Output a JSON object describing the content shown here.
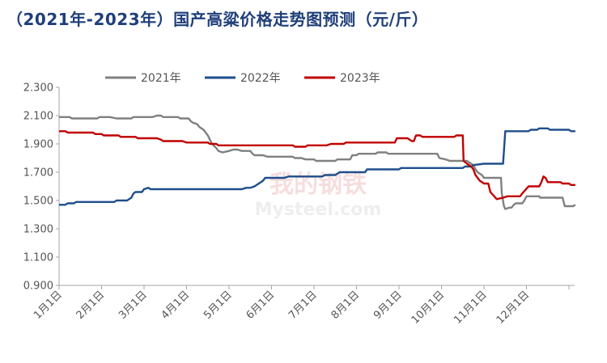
{
  "title": "（2021年-2023年）国产高粱价格走势图预测（元/斤）",
  "watermark": {
    "cn": "我的钢铁",
    "en": "Mysteel.com"
  },
  "chart_data": {
    "type": "line",
    "title": "（2021年-2023年）国产高粱价格走势图预测（元/斤）",
    "xlabel": "",
    "ylabel": "",
    "ylim": [
      0.9,
      2.3
    ],
    "yticks": [
      0.9,
      1.1,
      1.3,
      1.5,
      1.7,
      1.9,
      2.1,
      2.3
    ],
    "ytick_labels": [
      "0.900",
      "1.100",
      "1.300",
      "1.500",
      "1.700",
      "1.900",
      "2.100",
      "2.300"
    ],
    "xlim": [
      0,
      12
    ],
    "x_units": "months since 1月1日",
    "xtick_labels": [
      "1月1日",
      "2月1日",
      "3月1日",
      "4月1日",
      "5月1日",
      "6月1日",
      "7月1日",
      "8月1日",
      "9月1日",
      "10月1日",
      "11月1日",
      "12月1日"
    ],
    "legend_position": "top",
    "grid": false,
    "series": [
      {
        "name": "2021年",
        "color": "#808080",
        "points": [
          [
            0,
            2.09
          ],
          [
            0.25,
            2.09
          ],
          [
            0.3,
            2.08
          ],
          [
            0.9,
            2.08
          ],
          [
            0.95,
            2.09
          ],
          [
            1.2,
            2.09
          ],
          [
            1.35,
            2.08
          ],
          [
            1.7,
            2.08
          ],
          [
            1.75,
            2.09
          ],
          [
            2.2,
            2.09
          ],
          [
            2.3,
            2.1
          ],
          [
            2.4,
            2.1
          ],
          [
            2.45,
            2.09
          ],
          [
            2.8,
            2.09
          ],
          [
            2.85,
            2.08
          ],
          [
            3.05,
            2.08
          ],
          [
            3.1,
            2.06
          ],
          [
            3.15,
            2.05
          ],
          [
            3.25,
            2.04
          ],
          [
            3.3,
            2.02
          ],
          [
            3.4,
            2.0
          ],
          [
            3.5,
            1.96
          ],
          [
            3.55,
            1.93
          ],
          [
            3.6,
            1.9
          ],
          [
            3.7,
            1.87
          ],
          [
            3.75,
            1.85
          ],
          [
            3.85,
            1.84
          ],
          [
            4.0,
            1.85
          ],
          [
            4.1,
            1.86
          ],
          [
            4.2,
            1.86
          ],
          [
            4.3,
            1.85
          ],
          [
            4.5,
            1.85
          ],
          [
            4.55,
            1.83
          ],
          [
            4.6,
            1.82
          ],
          [
            4.8,
            1.82
          ],
          [
            4.9,
            1.81
          ],
          [
            5.5,
            1.81
          ],
          [
            5.55,
            1.8
          ],
          [
            5.7,
            1.8
          ],
          [
            5.8,
            1.79
          ],
          [
            6.0,
            1.79
          ],
          [
            6.05,
            1.78
          ],
          [
            6.5,
            1.78
          ],
          [
            6.55,
            1.79
          ],
          [
            6.85,
            1.79
          ],
          [
            6.9,
            1.82
          ],
          [
            7.0,
            1.82
          ],
          [
            7.05,
            1.83
          ],
          [
            7.45,
            1.83
          ],
          [
            7.5,
            1.84
          ],
          [
            7.7,
            1.84
          ],
          [
            7.75,
            1.83
          ],
          [
            8.9,
            1.83
          ],
          [
            8.95,
            1.8
          ],
          [
            9.1,
            1.79
          ],
          [
            9.2,
            1.78
          ],
          [
            9.6,
            1.78
          ],
          [
            9.65,
            1.77
          ],
          [
            9.75,
            1.75
          ],
          [
            9.8,
            1.72
          ],
          [
            9.85,
            1.7
          ],
          [
            9.95,
            1.68
          ],
          [
            10.0,
            1.66
          ],
          [
            10.4,
            1.66
          ],
          [
            10.42,
            1.55
          ],
          [
            10.47,
            1.46
          ],
          [
            10.5,
            1.44
          ],
          [
            10.6,
            1.45
          ],
          [
            10.65,
            1.45
          ],
          [
            10.7,
            1.47
          ],
          [
            10.75,
            1.48
          ],
          [
            10.9,
            1.48
          ],
          [
            10.95,
            1.5
          ],
          [
            11.0,
            1.53
          ],
          [
            11.3,
            1.53
          ],
          [
            11.32,
            1.52
          ],
          [
            11.8,
            1.52
          ],
          [
            11.85,
            1.52
          ],
          [
            11.9,
            1.46
          ],
          [
            12.0,
            1.46
          ],
          [
            12.1,
            1.46
          ],
          [
            12.15,
            1.47
          ]
        ]
      },
      {
        "name": "2022年",
        "color": "#1f4e8c",
        "points": [
          [
            0,
            1.47
          ],
          [
            0.15,
            1.47
          ],
          [
            0.2,
            1.48
          ],
          [
            0.35,
            1.48
          ],
          [
            0.4,
            1.49
          ],
          [
            1.3,
            1.49
          ],
          [
            1.35,
            1.5
          ],
          [
            1.6,
            1.5
          ],
          [
            1.7,
            1.52
          ],
          [
            1.75,
            1.55
          ],
          [
            1.8,
            1.56
          ],
          [
            1.95,
            1.56
          ],
          [
            2.0,
            1.58
          ],
          [
            2.1,
            1.59
          ],
          [
            2.15,
            1.58
          ],
          [
            2.2,
            1.58
          ],
          [
            4.3,
            1.58
          ],
          [
            4.4,
            1.59
          ],
          [
            4.5,
            1.59
          ],
          [
            4.6,
            1.6
          ],
          [
            4.7,
            1.62
          ],
          [
            4.8,
            1.64
          ],
          [
            4.85,
            1.66
          ],
          [
            5.3,
            1.66
          ],
          [
            5.4,
            1.67
          ],
          [
            6.2,
            1.67
          ],
          [
            6.25,
            1.68
          ],
          [
            6.5,
            1.68
          ],
          [
            6.55,
            1.69
          ],
          [
            6.6,
            1.7
          ],
          [
            7.2,
            1.7
          ],
          [
            7.25,
            1.72
          ],
          [
            8.0,
            1.72
          ],
          [
            8.05,
            1.73
          ],
          [
            9.0,
            1.73
          ],
          [
            9.5,
            1.73
          ],
          [
            9.55,
            1.74
          ],
          [
            9.7,
            1.74
          ],
          [
            9.75,
            1.75
          ],
          [
            10.0,
            1.76
          ],
          [
            10.45,
            1.76
          ],
          [
            10.5,
            1.99
          ],
          [
            11.05,
            1.99
          ],
          [
            11.1,
            2.0
          ],
          [
            11.25,
            2.0
          ],
          [
            11.3,
            2.01
          ],
          [
            11.5,
            2.01
          ],
          [
            11.55,
            2.0
          ],
          [
            11.85,
            2.0
          ],
          [
            12.0,
            2.0
          ],
          [
            12.05,
            1.99
          ],
          [
            12.15,
            1.99
          ]
        ]
      },
      {
        "name": "2023年",
        "color": "#c00000",
        "points": [
          [
            0,
            1.99
          ],
          [
            0.15,
            1.99
          ],
          [
            0.2,
            1.98
          ],
          [
            0.8,
            1.98
          ],
          [
            0.85,
            1.97
          ],
          [
            1.0,
            1.97
          ],
          [
            1.05,
            1.96
          ],
          [
            1.4,
            1.96
          ],
          [
            1.45,
            1.95
          ],
          [
            1.8,
            1.95
          ],
          [
            1.85,
            1.94
          ],
          [
            2.3,
            1.94
          ],
          [
            2.4,
            1.93
          ],
          [
            2.45,
            1.92
          ],
          [
            2.9,
            1.92
          ],
          [
            3.0,
            1.91
          ],
          [
            3.5,
            1.91
          ],
          [
            3.55,
            1.9
          ],
          [
            3.7,
            1.9
          ],
          [
            3.75,
            1.89
          ],
          [
            4.0,
            1.89
          ],
          [
            5.5,
            1.89
          ],
          [
            5.55,
            1.88
          ],
          [
            5.8,
            1.88
          ],
          [
            5.85,
            1.89
          ],
          [
            6.3,
            1.89
          ],
          [
            6.4,
            1.9
          ],
          [
            6.7,
            1.9
          ],
          [
            6.75,
            1.91
          ],
          [
            7.9,
            1.91
          ],
          [
            7.95,
            1.94
          ],
          [
            8.2,
            1.94
          ],
          [
            8.3,
            1.92
          ],
          [
            8.35,
            1.92
          ],
          [
            8.4,
            1.96
          ],
          [
            8.5,
            1.96
          ],
          [
            8.55,
            1.95
          ],
          [
            9.3,
            1.95
          ],
          [
            9.35,
            1.96
          ],
          [
            9.5,
            1.96
          ],
          [
            9.52,
            1.78
          ],
          [
            9.6,
            1.76
          ],
          [
            9.7,
            1.74
          ],
          [
            9.75,
            1.72
          ],
          [
            9.8,
            1.68
          ],
          [
            9.9,
            1.64
          ],
          [
            10.0,
            1.62
          ],
          [
            10.1,
            1.62
          ],
          [
            10.15,
            1.56
          ],
          [
            10.3,
            1.51
          ],
          [
            10.45,
            1.52
          ],
          [
            10.55,
            1.53
          ],
          [
            10.85,
            1.53
          ],
          [
            10.9,
            1.55
          ],
          [
            11.05,
            1.6
          ],
          [
            11.3,
            1.6
          ],
          [
            11.35,
            1.63
          ],
          [
            11.4,
            1.67
          ],
          [
            11.45,
            1.66
          ],
          [
            11.5,
            1.63
          ],
          [
            11.8,
            1.63
          ],
          [
            11.85,
            1.62
          ],
          [
            12.0,
            1.62
          ],
          [
            12.05,
            1.61
          ],
          [
            12.15,
            1.61
          ]
        ]
      }
    ]
  }
}
